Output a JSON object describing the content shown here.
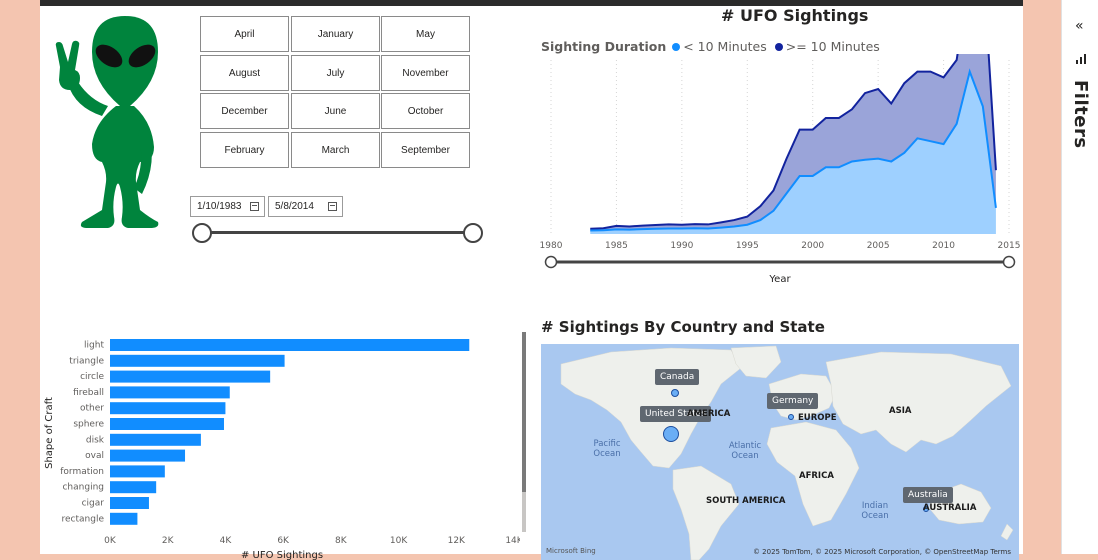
{
  "months": [
    "April",
    "January",
    "May",
    "August",
    "July",
    "November",
    "December",
    "June",
    "October",
    "February",
    "March",
    "September"
  ],
  "date_range": {
    "start": "1/10/1983",
    "end": "5/8/2014"
  },
  "area_chart": {
    "title": "# UFO Sightings"
  },
  "legend": {
    "title": "Sighting Duration",
    "a_label": "< 10 Minutes",
    "b_label": ">= 10 Minutes"
  },
  "bar_chart": {},
  "map": {
    "title": "# Sightings By Country and State",
    "tooltips": [
      "Canada",
      "Germany",
      "United States",
      "Australia"
    ],
    "labels": [
      "AMERICA",
      "EUROPE",
      "ASIA",
      "AFRICA",
      "SOUTH AMERICA",
      "AUSTRALIA"
    ],
    "oceans": [
      "Pacific Ocean",
      "Atlantic Ocean",
      "Indian Ocean"
    ],
    "attribution": "© 2025 TomTom, © 2025 Microsoft Corporation, © OpenStreetMap  Terms",
    "bing": "Microsoft Bing"
  },
  "filters_pane": {
    "label": "Filters",
    "collapse": "«"
  },
  "colors": {
    "short": "#118dff",
    "long": "#12239e",
    "bar": "#118dff",
    "alien": "#00843d"
  },
  "chart_data": [
    {
      "type": "area",
      "title": "# UFO Sightings",
      "xlabel": "Year",
      "legend_title": "Sighting Duration",
      "x_ticks": [
        "1980",
        "1985",
        "1990",
        "1995",
        "2000",
        "2005",
        "2010",
        "2015"
      ],
      "xlim": [
        1980,
        2015
      ],
      "x": [
        1983,
        1984,
        1985,
        1986,
        1987,
        1988,
        1989,
        1990,
        1991,
        1992,
        1993,
        1994,
        1995,
        1996,
        1997,
        1998,
        1999,
        2000,
        2001,
        2002,
        2003,
        2004,
        2005,
        2006,
        2007,
        2008,
        2009,
        2010,
        2011,
        2012,
        2013,
        2014
      ],
      "series": [
        {
          "name": "< 10 Minutes",
          "values": [
            60,
            65,
            80,
            75,
            85,
            90,
            95,
            95,
            100,
            95,
            110,
            130,
            160,
            240,
            400,
            700,
            1000,
            1000,
            1150,
            1150,
            1250,
            1280,
            1300,
            1250,
            1400,
            1650,
            1600,
            1550,
            1900,
            2800,
            2200,
            450
          ]
        },
        {
          "name": ">= 10 Minutes",
          "values": [
            30,
            35,
            60,
            55,
            60,
            65,
            70,
            65,
            70,
            70,
            90,
            110,
            140,
            240,
            350,
            600,
            800,
            800,
            850,
            850,
            900,
            1150,
            1200,
            1000,
            1200,
            1150,
            1200,
            1150,
            1100,
            1700,
            2500,
            650
          ]
        }
      ]
    },
    {
      "type": "bar",
      "orientation": "horizontal",
      "xlabel": "# UFO Sightings",
      "ylabel": "Shape of Craft",
      "x_ticks": [
        "0K",
        "2K",
        "4K",
        "6K",
        "8K",
        "10K",
        "12K",
        "14K"
      ],
      "xlim": [
        0,
        14000
      ],
      "categories": [
        "light",
        "triangle",
        "circle",
        "fireball",
        "other",
        "sphere",
        "disk",
        "oval",
        "formation",
        "changing",
        "cigar",
        "rectangle"
      ],
      "values": [
        12450,
        6050,
        5550,
        4150,
        4000,
        3950,
        3150,
        2600,
        1900,
        1600,
        1350,
        950
      ]
    }
  ]
}
